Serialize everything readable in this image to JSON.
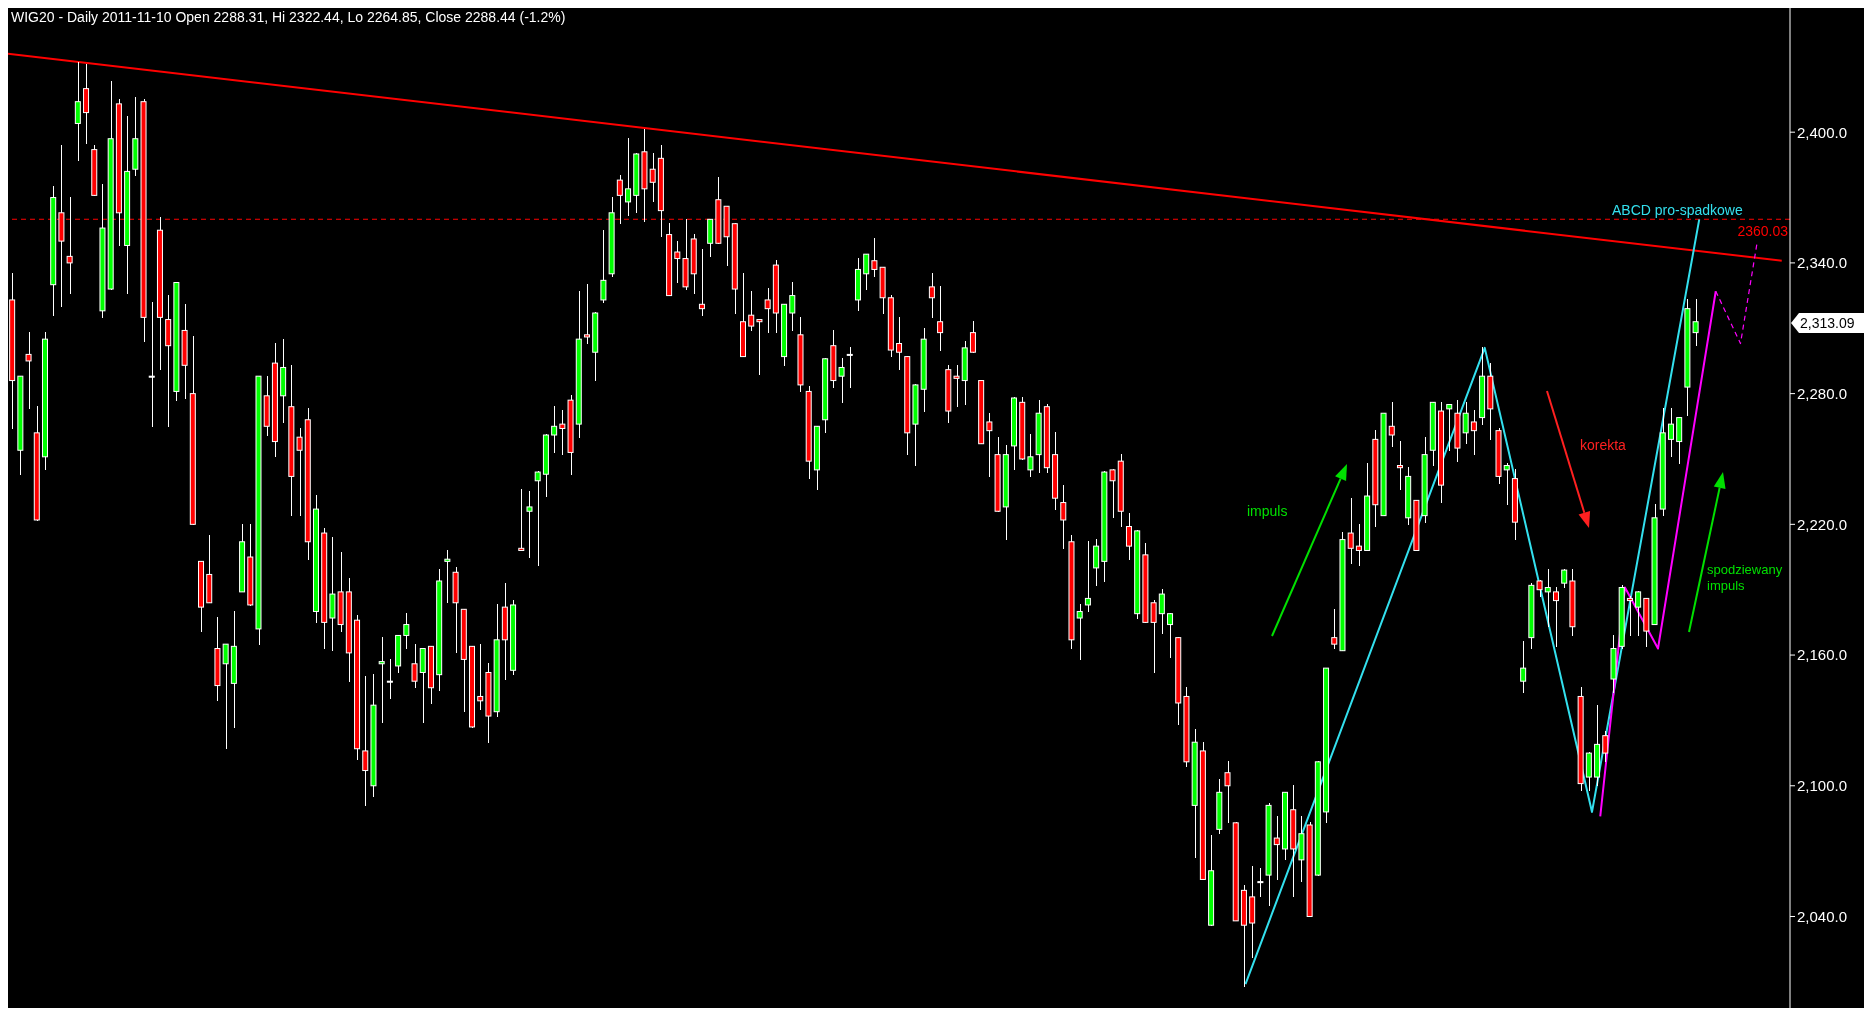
{
  "chart_data": {
    "type": "candlestick",
    "title": "WIG20 - Daily 2011-11-10 Open 2288.31, Hi 2322.44, Lo 2264.85, Close 2288.44 (-1.2%)",
    "categories": [
      null,
      null,
      null,
      null,
      null,
      null,
      null,
      null,
      null,
      null,
      null,
      null,
      null,
      null,
      null,
      null,
      null,
      null,
      null,
      null,
      null,
      null,
      null,
      null,
      null,
      null,
      null,
      null,
      null,
      null,
      null,
      null,
      null,
      null,
      null,
      null,
      null,
      null,
      null,
      null,
      null,
      null,
      null,
      null,
      null,
      null,
      null,
      null,
      null,
      null,
      null,
      null,
      null,
      null,
      null,
      null,
      null,
      null,
      null,
      null,
      null,
      null,
      null,
      null,
      null,
      null,
      null,
      null,
      null,
      null,
      null,
      null,
      null,
      null,
      null,
      null,
      null,
      null,
      null,
      null,
      null,
      null,
      null,
      null,
      null,
      null,
      null,
      null,
      null,
      null,
      null,
      null,
      null,
      null,
      null,
      null,
      null,
      null,
      null,
      null,
      null,
      null,
      null,
      null,
      null,
      null,
      null,
      null,
      null,
      null,
      null,
      null,
      null,
      null,
      null,
      null,
      null,
      null,
      null,
      null,
      null,
      null,
      null,
      null,
      null,
      null,
      null,
      null,
      null,
      null,
      null,
      null,
      null,
      null,
      null,
      null,
      null,
      null,
      null,
      null,
      null,
      null,
      null,
      null,
      null,
      null,
      null,
      null,
      null,
      null,
      null,
      null,
      null,
      null,
      null,
      null,
      null,
      null,
      null,
      null,
      null,
      null,
      null,
      null,
      null,
      null,
      null,
      null,
      null,
      null,
      null,
      null,
      null,
      null,
      null,
      null,
      null,
      null,
      null,
      null,
      null,
      null,
      null,
      null,
      null,
      null,
      null,
      null,
      null,
      null,
      null,
      null,
      null,
      null,
      null,
      null,
      null,
      null,
      null,
      null,
      null,
      null,
      null,
      null,
      null,
      null,
      null,
      null,
      null,
      null,
      null,
      null,
      null,
      null,
      null,
      null,
      null
    ],
    "ohlc": [
      [
        2323,
        2335,
        2264,
        2286
      ],
      [
        2254,
        2288,
        2243,
        2288
      ],
      [
        2298,
        2308,
        2273,
        2295
      ],
      [
        2262,
        2274,
        2222,
        2222
      ],
      [
        2251,
        2308,
        2245,
        2305
      ],
      [
        2330,
        2375,
        2316,
        2370
      ],
      [
        2363,
        2394,
        2320,
        2350
      ],
      [
        2343,
        2370,
        2326,
        2340
      ],
      [
        2404,
        2432,
        2387,
        2414
      ],
      [
        2420,
        2431,
        2395,
        2409
      ],
      [
        2392,
        2394,
        2371,
        2371
      ],
      [
        2318,
        2376,
        2315,
        2356
      ],
      [
        2328,
        2423,
        2328,
        2397
      ],
      [
        2413,
        2415,
        2348,
        2363
      ],
      [
        2348,
        2407,
        2326,
        2382
      ],
      [
        2383,
        2416,
        2380,
        2397
      ],
      [
        2414,
        2415,
        2304,
        2315
      ],
      [
        2288,
        2322,
        2265,
        2288
      ],
      [
        2355,
        2361,
        2291,
        2315
      ],
      [
        2314,
        2325,
        2265,
        2302
      ],
      [
        2281,
        2331,
        2277,
        2331
      ],
      [
        2309,
        2321,
        2278,
        2293
      ],
      [
        2280,
        2306,
        2220,
        2220
      ],
      [
        2203,
        2203,
        2171,
        2182
      ],
      [
        2197,
        2215,
        2184,
        2184
      ],
      [
        2163,
        2177,
        2139,
        2146
      ],
      [
        2156,
        2165,
        2117,
        2165
      ],
      [
        2147,
        2180,
        2127,
        2164
      ],
      [
        2189,
        2220,
        2189,
        2212
      ],
      [
        2205,
        2220,
        2183,
        2183
      ],
      [
        2172,
        2288,
        2165,
        2288
      ],
      [
        2279,
        2288,
        2261,
        2265
      ],
      [
        2294,
        2303,
        2251,
        2258
      ],
      [
        2279,
        2305,
        2267,
        2292
      ],
      [
        2274,
        2293,
        2224,
        2242
      ],
      [
        2260,
        2264,
        2224,
        2254
      ],
      [
        2268,
        2273,
        2204,
        2212
      ],
      [
        2180,
        2233,
        2175,
        2227
      ],
      [
        2216,
        2218,
        2163,
        2175
      ],
      [
        2177,
        2214,
        2162,
        2188
      ],
      [
        2189,
        2207,
        2171,
        2174
      ],
      [
        2189,
        2195,
        2148,
        2161
      ],
      [
        2176,
        2178,
        2112,
        2117
      ],
      [
        2116,
        2150,
        2091,
        2107
      ],
      [
        2100,
        2151,
        2095,
        2137
      ],
      [
        2156,
        2168,
        2129,
        2157
      ],
      [
        2148,
        2158,
        2140,
        2148
      ],
      [
        2155,
        2169,
        2152,
        2169
      ],
      [
        2169,
        2179,
        2163,
        2174
      ],
      [
        2156,
        2165,
        2145,
        2148
      ],
      [
        2152,
        2163,
        2129,
        2163
      ],
      [
        2164,
        2164,
        2138,
        2145
      ],
      [
        2151,
        2199,
        2144,
        2194
      ],
      [
        2203,
        2208,
        2184,
        2204
      ],
      [
        2198,
        2200,
        2161,
        2184
      ],
      [
        2181,
        2181,
        2134,
        2158
      ],
      [
        2164,
        2164,
        2127,
        2127
      ],
      [
        2141,
        2165,
        2135,
        2139
      ],
      [
        2152,
        2156,
        2120,
        2132
      ],
      [
        2134,
        2183,
        2132,
        2167
      ],
      [
        2182,
        2193,
        2149,
        2167
      ],
      [
        2153,
        2185,
        2151,
        2183
      ],
      [
        2209,
        2236,
        2208,
        2208
      ],
      [
        2226,
        2235,
        2205,
        2228
      ],
      [
        2240,
        2244,
        2201,
        2244
      ],
      [
        2243,
        2261,
        2233,
        2261
      ],
      [
        2261,
        2274,
        2253,
        2265
      ],
      [
        2266,
        2272,
        2252,
        2264
      ],
      [
        2277,
        2279,
        2243,
        2253
      ],
      [
        2266,
        2327,
        2260,
        2305
      ],
      [
        2307,
        2330,
        2303,
        2306
      ],
      [
        2299,
        2317,
        2286,
        2317
      ],
      [
        2323,
        2355,
        2322,
        2332
      ],
      [
        2335,
        2370,
        2334,
        2363
      ],
      [
        2378,
        2380,
        2358,
        2371
      ],
      [
        2368,
        2397,
        2362,
        2374
      ],
      [
        2371,
        2390,
        2363,
        2390
      ],
      [
        2391,
        2401,
        2359,
        2374
      ],
      [
        2383,
        2390,
        2368,
        2377
      ],
      [
        2388,
        2394,
        2352,
        2364
      ],
      [
        2353,
        2358,
        2325,
        2325
      ],
      [
        2345,
        2350,
        2331,
        2342
      ],
      [
        2342,
        2360,
        2328,
        2329
      ],
      [
        2351,
        2353,
        2326,
        2335
      ],
      [
        2321,
        2346,
        2316,
        2319
      ],
      [
        2349,
        2360,
        2343,
        2360
      ],
      [
        2369,
        2379,
        2349,
        2349
      ],
      [
        2366,
        2366,
        2339,
        2352
      ],
      [
        2358,
        2358,
        2317,
        2328
      ],
      [
        2313,
        2335,
        2297,
        2297
      ],
      [
        2316,
        2327,
        2309,
        2311
      ],
      [
        2314,
        2314,
        2289,
        2313
      ],
      [
        2323,
        2328,
        2308,
        2319
      ],
      [
        2339,
        2341,
        2308,
        2317
      ],
      [
        2297,
        2321,
        2293,
        2321
      ],
      [
        2317,
        2331,
        2309,
        2325
      ],
      [
        2307,
        2315,
        2281,
        2284
      ],
      [
        2281,
        2283,
        2241,
        2249
      ],
      [
        2245,
        2265,
        2236,
        2265
      ],
      [
        2268,
        2296,
        2262,
        2296
      ],
      [
        2302,
        2309,
        2283,
        2286
      ],
      [
        2288,
        2296,
        2276,
        2292
      ],
      [
        2298,
        2301,
        2283,
        2298
      ],
      [
        2323,
        2342,
        2318,
        2337
      ],
      [
        2335,
        2344,
        2328,
        2344
      ],
      [
        2341,
        2351,
        2334,
        2337
      ],
      [
        2338,
        2338,
        2317,
        2324
      ],
      [
        2324,
        2325,
        2297,
        2300
      ],
      [
        2303,
        2315,
        2291,
        2299
      ],
      [
        2297,
        2297,
        2252,
        2262
      ],
      [
        2266,
        2284,
        2247,
        2284
      ],
      [
        2282,
        2310,
        2272,
        2305
      ],
      [
        2329,
        2335,
        2315,
        2324
      ],
      [
        2313,
        2329,
        2300,
        2308
      ],
      [
        2291,
        2293,
        2267,
        2272
      ],
      [
        2288,
        2293,
        2274,
        2287
      ],
      [
        2286,
        2304,
        2275,
        2301
      ],
      [
        2308,
        2313,
        2299,
        2299
      ],
      [
        2286,
        2286,
        2257,
        2257
      ],
      [
        2267,
        2271,
        2242,
        2263
      ],
      [
        2252,
        2260,
        2226,
        2226
      ],
      [
        2228,
        2256,
        2213,
        2252
      ],
      [
        2256,
        2278,
        2245,
        2278
      ],
      [
        2276,
        2278,
        2250,
        2250
      ],
      [
        2245,
        2261,
        2242,
        2251
      ],
      [
        2252,
        2277,
        2244,
        2271
      ],
      [
        2274,
        2275,
        2244,
        2246
      ],
      [
        2252,
        2262,
        2227,
        2232
      ],
      [
        2230,
        2238,
        2209,
        2222
      ],
      [
        2212,
        2215,
        2163,
        2167
      ],
      [
        2177,
        2183,
        2158,
        2180
      ],
      [
        2183,
        2212,
        2180,
        2186
      ],
      [
        2200,
        2213,
        2192,
        2210
      ],
      [
        2203,
        2244,
        2194,
        2244
      ],
      [
        2245,
        2245,
        2223,
        2240
      ],
      [
        2249,
        2252,
        2219,
        2226
      ],
      [
        2219,
        2225,
        2204,
        2210
      ],
      [
        2179,
        2217,
        2177,
        2217
      ],
      [
        2206,
        2211,
        2175,
        2175
      ],
      [
        2184,
        2185,
        2152,
        2175
      ],
      [
        2179,
        2190,
        2170,
        2188
      ],
      [
        2174,
        2179,
        2159,
        2179
      ],
      [
        2168,
        2168,
        2128,
        2138
      ],
      [
        2141,
        2145,
        2109,
        2111
      ],
      [
        2091,
        2126,
        2067,
        2120
      ],
      [
        2116,
        2120,
        2057,
        2057
      ],
      [
        2036,
        2077,
        2036,
        2061
      ],
      [
        2080,
        2103,
        2078,
        2097
      ],
      [
        2106,
        2111,
        2083,
        2100
      ],
      [
        2083,
        2083,
        2038,
        2038
      ],
      [
        2052,
        2054,
        2008,
        2036
      ],
      [
        2049,
        2063,
        2021,
        2037
      ],
      [
        2056,
        2062,
        2049,
        2056
      ],
      [
        2059,
        2092,
        2045,
        2091
      ],
      [
        2076,
        2086,
        2057,
        2073
      ],
      [
        2071,
        2097,
        2066,
        2097
      ],
      [
        2089,
        2100,
        2049,
        2071
      ],
      [
        2066,
        2086,
        2056,
        2078
      ],
      [
        2082,
        2083,
        2040,
        2040
      ],
      [
        2059,
        2111,
        2059,
        2111
      ],
      [
        2088,
        2154,
        2083,
        2154
      ],
      [
        2168,
        2181,
        2163,
        2165
      ],
      [
        2162,
        2216,
        2162,
        2213
      ],
      [
        2216,
        2232,
        2202,
        2209
      ],
      [
        2210,
        2220,
        2201,
        2208
      ],
      [
        2208,
        2248,
        2208,
        2233
      ],
      [
        2259,
        2263,
        2219,
        2229
      ],
      [
        2224,
        2271,
        2224,
        2271
      ],
      [
        2265,
        2276,
        2256,
        2261
      ],
      [
        2247,
        2258,
        2236,
        2246
      ],
      [
        2223,
        2246,
        2220,
        2242
      ],
      [
        2231,
        2231,
        2208,
        2208
      ],
      [
        2224,
        2260,
        2221,
        2252
      ],
      [
        2254,
        2276,
        2247,
        2276
      ],
      [
        2272,
        2276,
        2230,
        2238
      ],
      [
        2273,
        2275,
        2254,
        2275
      ],
      [
        2271,
        2277,
        2249,
        2255
      ],
      [
        2262,
        2276,
        2257,
        2271
      ],
      [
        2267,
        2272,
        2252,
        2263
      ],
      [
        2269,
        2301,
        2266,
        2288
      ],
      [
        2288,
        2294,
        2259,
        2273
      ],
      [
        2263,
        2264,
        2239,
        2242
      ],
      [
        2245,
        2248,
        2229,
        2247
      ],
      [
        2241,
        2245,
        2213,
        2221
      ],
      [
        2148,
        2166,
        2143,
        2154
      ],
      [
        2168,
        2193,
        2163,
        2192
      ],
      [
        2194,
        2194,
        2187,
        2190
      ],
      [
        2189,
        2199,
        2173,
        2191
      ],
      [
        2189,
        2191,
        2164,
        2185
      ],
      [
        2193,
        2199,
        2191,
        2199
      ],
      [
        2194,
        2199,
        2169,
        2173
      ],
      [
        2141,
        2145,
        2098,
        2101
      ],
      [
        2104,
        2115,
        2098,
        2115
      ],
      [
        2104,
        2137,
        2100,
        2119
      ],
      [
        2123,
        2125,
        2111,
        2115
      ],
      [
        2149,
        2169,
        2143,
        2163
      ],
      [
        2164,
        2192,
        2163,
        2191
      ],
      [
        2186,
        2187,
        2169,
        2185
      ],
      [
        2182,
        2189,
        2169,
        2189
      ],
      [
        2186,
        2186,
        2164,
        2171
      ],
      [
        2174,
        2229,
        2174,
        2223
      ],
      [
        2227,
        2273,
        2224,
        2262
      ],
      [
        2259,
        2273,
        2251,
        2266
      ],
      [
        2258,
        2269,
        2248,
        2269
      ],
      [
        2283,
        2323,
        2270,
        2319
      ],
      [
        2308,
        2323,
        2302,
        2313
      ],
      null,
      null,
      null,
      null,
      null,
      null,
      null,
      null,
      null,
      null,
      null
    ],
    "series": [
      {
        "type": "line",
        "color": "#ff0000",
        "values": [
          2436,
          null,
          null,
          null,
          null,
          null,
          null,
          null,
          null,
          null,
          null,
          null,
          null,
          null,
          null,
          null,
          null,
          null,
          null,
          null,
          null,
          null,
          null,
          null,
          null,
          null,
          null,
          null,
          null,
          null,
          null,
          null,
          null,
          null,
          null,
          null,
          null,
          null,
          null,
          null,
          null,
          null,
          null,
          null,
          null,
          null,
          null,
          null,
          null,
          null,
          null,
          null,
          null,
          null,
          null,
          null,
          null,
          null,
          null,
          null,
          null,
          null,
          null,
          null,
          null,
          null,
          null,
          null,
          null,
          null,
          null,
          null,
          null,
          null,
          null,
          null,
          null,
          null,
          null,
          null,
          null,
          null,
          null,
          null,
          null,
          null,
          null,
          null,
          null,
          null,
          null,
          null,
          null,
          null,
          null,
          null,
          null,
          null,
          null,
          null,
          null,
          null,
          null,
          null,
          null,
          null,
          null,
          null,
          null,
          null,
          null,
          null,
          null,
          null,
          null,
          null,
          null,
          null,
          null,
          null,
          null,
          null,
          null,
          null,
          null,
          null,
          null,
          null,
          null,
          null,
          null,
          null,
          null,
          null,
          null,
          null,
          null,
          null,
          null,
          null,
          null,
          null,
          null,
          null,
          null,
          null,
          null,
          null,
          null,
          null,
          null,
          null,
          null,
          null,
          null,
          null,
          null,
          null,
          null,
          null,
          null,
          null,
          null,
          null,
          null,
          null,
          null,
          null,
          null,
          null,
          null,
          null,
          null,
          null,
          null,
          null,
          null,
          null,
          null,
          null,
          null,
          null,
          null,
          null,
          null,
          null,
          null,
          null,
          null,
          null,
          null,
          null,
          null,
          null,
          null,
          null,
          null,
          null,
          null,
          null,
          null,
          null,
          null,
          null,
          null,
          null,
          null,
          null,
          null,
          null,
          null,
          null,
          null,
          null,
          null,
          2341,
          null
        ]
      },
      {
        "type": "line",
        "color": "#33e0ee",
        "values": [
          null,
          null,
          null,
          null,
          null,
          null,
          null,
          null,
          null,
          null,
          null,
          null,
          null,
          null,
          null,
          null,
          null,
          null,
          null,
          null,
          null,
          null,
          null,
          null,
          null,
          null,
          null,
          null,
          null,
          null,
          null,
          null,
          null,
          null,
          null,
          null,
          null,
          null,
          null,
          null,
          null,
          null,
          null,
          null,
          null,
          null,
          null,
          null,
          null,
          null,
          null,
          null,
          null,
          null,
          null,
          null,
          null,
          null,
          null,
          null,
          null,
          null,
          null,
          null,
          null,
          null,
          null,
          null,
          null,
          null,
          null,
          null,
          null,
          null,
          null,
          null,
          null,
          null,
          null,
          null,
          null,
          null,
          null,
          null,
          null,
          null,
          null,
          null,
          null,
          null,
          null,
          null,
          null,
          null,
          null,
          null,
          null,
          null,
          null,
          null,
          null,
          null,
          null,
          null,
          null,
          null,
          null,
          null,
          null,
          null,
          null,
          null,
          null,
          null,
          null,
          null,
          null,
          null,
          null,
          null,
          null,
          null,
          null,
          null,
          null,
          null,
          null,
          null,
          null,
          null,
          null,
          null,
          null,
          null,
          null,
          null,
          null,
          null,
          null,
          null,
          null,
          null,
          null,
          null,
          null,
          null,
          null,
          null,
          null,
          null,
          2009,
          null,
          null,
          null,
          null,
          null,
          null,
          null,
          null,
          null,
          null,
          null,
          null,
          null,
          null,
          null,
          null,
          null,
          null,
          null,
          null,
          null,
          null,
          null,
          null,
          null,
          null,
          null,
          null,
          2301,
          null,
          null,
          null,
          null,
          null,
          null,
          null,
          null,
          null,
          null,
          null,
          null,
          2088,
          null,
          null,
          null,
          null,
          null,
          null,
          null,
          null,
          null,
          null,
          null,
          null,
          2360,
          null,
          null,
          null,
          null,
          null,
          null,
          null,
          null,
          null,
          null,
          null
        ]
      },
      {
        "type": "line",
        "color": "#ff00ff",
        "values": [
          null,
          null,
          null,
          null,
          null,
          null,
          null,
          null,
          null,
          null,
          null,
          null,
          null,
          null,
          null,
          null,
          null,
          null,
          null,
          null,
          null,
          null,
          null,
          null,
          null,
          null,
          null,
          null,
          null,
          null,
          null,
          null,
          null,
          null,
          null,
          null,
          null,
          null,
          null,
          null,
          null,
          null,
          null,
          null,
          null,
          null,
          null,
          null,
          null,
          null,
          null,
          null,
          null,
          null,
          null,
          null,
          null,
          null,
          null,
          null,
          null,
          null,
          null,
          null,
          null,
          null,
          null,
          null,
          null,
          null,
          null,
          null,
          null,
          null,
          null,
          null,
          null,
          null,
          null,
          null,
          null,
          null,
          null,
          null,
          null,
          null,
          null,
          null,
          null,
          null,
          null,
          null,
          null,
          null,
          null,
          null,
          null,
          null,
          null,
          null,
          null,
          null,
          null,
          null,
          null,
          null,
          null,
          null,
          null,
          null,
          null,
          null,
          null,
          null,
          null,
          null,
          null,
          null,
          null,
          null,
          null,
          null,
          null,
          null,
          null,
          null,
          null,
          null,
          null,
          null,
          null,
          null,
          null,
          null,
          null,
          null,
          null,
          null,
          null,
          null,
          null,
          null,
          null,
          null,
          null,
          null,
          null,
          null,
          null,
          null,
          null,
          null,
          null,
          null,
          null,
          null,
          null,
          null,
          null,
          null,
          null,
          null,
          null,
          null,
          null,
          null,
          null,
          null,
          null,
          null,
          null,
          null,
          null,
          null,
          null,
          null,
          null,
          null,
          null,
          null,
          null,
          null,
          null,
          null,
          null,
          null,
          null,
          null,
          null,
          null,
          null,
          null,
          null,
          2086,
          null,
          null,
          2191,
          null,
          null,
          null,
          2163,
          null,
          null,
          null,
          null,
          null,
          null,
          2327,
          null,
          null,
          null,
          null,
          null,
          null,
          null,
          null,
          null
        ]
      },
      {
        "type": "line",
        "color": "#ff00ff",
        "line_style": "dashed",
        "values": [
          null,
          null,
          null,
          null,
          null,
          null,
          null,
          null,
          null,
          null,
          null,
          null,
          null,
          null,
          null,
          null,
          null,
          null,
          null,
          null,
          null,
          null,
          null,
          null,
          null,
          null,
          null,
          null,
          null,
          null,
          null,
          null,
          null,
          null,
          null,
          null,
          null,
          null,
          null,
          null,
          null,
          null,
          null,
          null,
          null,
          null,
          null,
          null,
          null,
          null,
          null,
          null,
          null,
          null,
          null,
          null,
          null,
          null,
          null,
          null,
          null,
          null,
          null,
          null,
          null,
          null,
          null,
          null,
          null,
          null,
          null,
          null,
          null,
          null,
          null,
          null,
          null,
          null,
          null,
          null,
          null,
          null,
          null,
          null,
          null,
          null,
          null,
          null,
          null,
          null,
          null,
          null,
          null,
          null,
          null,
          null,
          null,
          null,
          null,
          null,
          null,
          null,
          null,
          null,
          null,
          null,
          null,
          null,
          null,
          null,
          null,
          null,
          null,
          null,
          null,
          null,
          null,
          null,
          null,
          null,
          null,
          null,
          null,
          null,
          null,
          null,
          null,
          null,
          null,
          null,
          null,
          null,
          null,
          null,
          null,
          null,
          null,
          null,
          null,
          null,
          null,
          null,
          null,
          null,
          null,
          null,
          null,
          null,
          null,
          null,
          null,
          null,
          null,
          null,
          null,
          null,
          null,
          null,
          null,
          null,
          null,
          null,
          null,
          null,
          null,
          null,
          null,
          null,
          null,
          null,
          null,
          null,
          null,
          null,
          null,
          null,
          null,
          null,
          null,
          null,
          null,
          null,
          null,
          null,
          null,
          null,
          null,
          null,
          null,
          null,
          null,
          null,
          null,
          null,
          null,
          null,
          null,
          null,
          null,
          null,
          null,
          null,
          null,
          null,
          null,
          null,
          null,
          2327,
          null,
          null,
          2303,
          null,
          2349,
          null,
          null,
          null,
          null
        ]
      }
    ],
    "ylim": [
      1998,
      2457
    ],
    "yticks": [
      {
        "value": 2040,
        "label": "2,040.0"
      },
      {
        "value": 2100,
        "label": "2,100.0"
      },
      {
        "value": 2160,
        "label": "2,160.0"
      },
      {
        "value": 2220,
        "label": "2,220.0"
      },
      {
        "value": 2280,
        "label": "2,280.0"
      },
      {
        "value": 2340,
        "label": "2,340.0"
      },
      {
        "value": 2400,
        "label": "2,400.0"
      }
    ],
    "tick_labels": "y",
    "ref_lines": [
      {
        "axis": "y",
        "value": 2360.03,
        "label": "2360.03",
        "color": "#ff0000",
        "line_style": "dashed"
      }
    ],
    "annotations": [
      "ABCD pro-spadkowe",
      "impuls",
      "korekta",
      "spodziewany impuls",
      "2,313.09"
    ]
  }
}
